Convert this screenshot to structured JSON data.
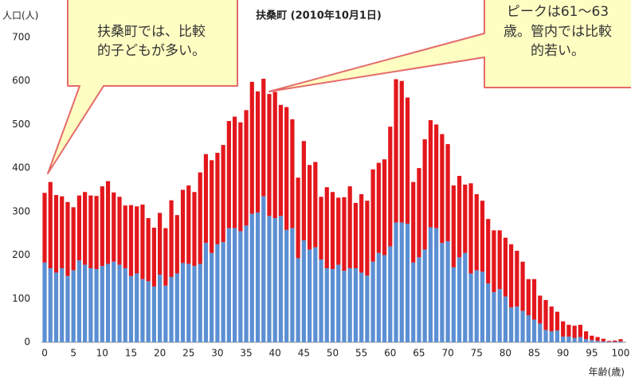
{
  "chart_data": {
    "type": "stacked_bar",
    "title": "扶桑町 (2010年10月1日)",
    "y_label": "人口(人)",
    "x_label": "年齢(歳)",
    "annotations": [
      {
        "lines": [
          "扶桑町では、比較",
          "的子どもが多い。"
        ]
      },
      {
        "lines": [
          "ピークは61～63",
          "歳。管内では比較",
          "的若い。"
        ]
      }
    ],
    "categories": [
      "0",
      null,
      null,
      null,
      null,
      "5",
      null,
      null,
      null,
      null,
      "10",
      null,
      null,
      null,
      null,
      "15",
      null,
      null,
      null,
      null,
      "20",
      null,
      null,
      null,
      null,
      "25",
      null,
      null,
      null,
      null,
      "30",
      null,
      null,
      null,
      null,
      "35",
      null,
      null,
      null,
      null,
      "40",
      null,
      null,
      null,
      null,
      "45",
      null,
      null,
      null,
      null,
      "50",
      null,
      null,
      null,
      null,
      "55",
      null,
      null,
      null,
      null,
      "60",
      null,
      null,
      null,
      null,
      "65",
      null,
      null,
      null,
      null,
      "70",
      null,
      null,
      null,
      null,
      "75",
      null,
      null,
      null,
      null,
      "80",
      null,
      null,
      null,
      null,
      "85",
      null,
      null,
      null,
      null,
      "90",
      null,
      null,
      null,
      null,
      "95",
      null,
      null,
      null,
      null,
      "100"
    ],
    "series": [
      {
        "color": "#5b8fd3",
        "values": [
          183,
          170,
          160,
          170,
          152,
          165,
          188,
          178,
          170,
          168,
          175,
          180,
          185,
          178,
          170,
          152,
          158,
          145,
          140,
          128,
          155,
          130,
          150,
          158,
          182,
          180,
          175,
          180,
          228,
          205,
          225,
          230,
          262,
          262,
          255,
          268,
          295,
          298,
          335,
          290,
          285,
          290,
          258,
          262,
          193,
          234,
          213,
          218,
          190,
          170,
          168,
          178,
          164,
          170,
          170,
          160,
          153,
          185,
          205,
          200,
          220,
          275,
          275,
          272,
          183,
          195,
          213,
          264,
          262,
          228,
          232,
          172,
          195,
          205,
          158,
          165,
          162,
          135,
          115,
          122,
          105,
          80,
          82,
          72,
          62,
          52,
          43,
          28,
          25,
          27,
          13,
          13,
          10,
          12,
          7,
          5,
          3,
          2,
          1,
          1,
          2
        ]
      },
      {
        "color": "#e3171c",
        "values": [
          160,
          198,
          178,
          165,
          170,
          145,
          149,
          167,
          167,
          168,
          183,
          190,
          159,
          156,
          144,
          163,
          154,
          171,
          145,
          135,
          142,
          132,
          176,
          134,
          168,
          180,
          170,
          210,
          204,
          213,
          210,
          223,
          246,
          256,
          250,
          265,
          303,
          278,
          270,
          280,
          290,
          255,
          282,
          250,
          185,
          228,
          194,
          196,
          144,
          186,
          177,
          154,
          169,
          188,
          150,
          180,
          172,
          212,
          207,
          220,
          275,
          329,
          325,
          290,
          185,
          205,
          253,
          246,
          238,
          250,
          223,
          188,
          187,
          157,
          207,
          175,
          163,
          148,
          142,
          135,
          135,
          145,
          128,
          113,
          83,
          93,
          64,
          69,
          57,
          43,
          35,
          27,
          28,
          28,
          18,
          10,
          9,
          6,
          2,
          3,
          5
        ]
      }
    ],
    "ylim": [
      0,
      700
    ],
    "yticks": [
      0,
      100,
      200,
      300,
      400,
      500,
      600,
      700
    ],
    "grid": false
  }
}
